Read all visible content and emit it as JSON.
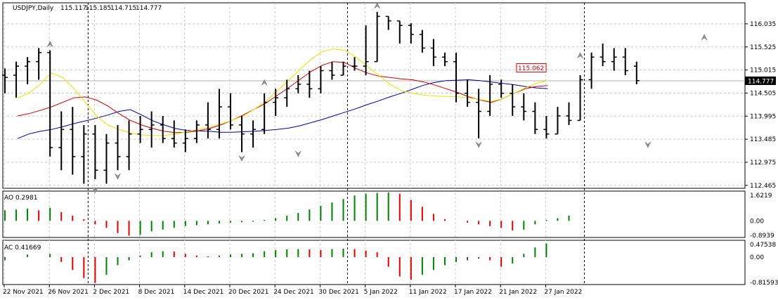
{
  "chart_data": {
    "type": "ohlc",
    "symbol": "USDJPY,Daily",
    "header_values": [
      "115.117",
      "115.185",
      "114.715",
      "114.777"
    ],
    "current_price": 114.777,
    "current_price_label": "114.777",
    "marker_price": 115.062,
    "marker_price_label": "115.062",
    "price_axis_ticks": [
      "116.035",
      "115.525",
      "115.015",
      "114.505",
      "113.995",
      "113.485",
      "112.975",
      "112.465"
    ],
    "ylim": [
      112.4,
      116.5
    ],
    "date_labels": [
      "22 Nov 2021",
      "26 Nov 2021",
      "2 Dec 2021",
      "8 Dec 2021",
      "14 Dec 2021",
      "20 Dec 2021",
      "24 Dec 2021",
      "30 Dec 2021",
      "5 Jan 2022",
      "11 Jan 2022",
      "17 Jan 2022",
      "21 Jan 2022",
      "27 Jan 2022"
    ],
    "date_label_bar_index": [
      0,
      4,
      8,
      12,
      16,
      20,
      24,
      28,
      32,
      36,
      40,
      44,
      48
    ],
    "separator_bar_index": [
      7,
      30,
      51
    ],
    "bars": [
      {
        "o": 114.9,
        "h": 115.05,
        "l": 114.5,
        "c": 114.85
      },
      {
        "o": 114.9,
        "h": 115.2,
        "l": 114.4,
        "c": 115.1
      },
      {
        "o": 115.1,
        "h": 115.3,
        "l": 114.7,
        "c": 115.2
      },
      {
        "o": 115.2,
        "h": 115.5,
        "l": 114.8,
        "c": 115.4
      },
      {
        "o": 115.4,
        "h": 115.45,
        "l": 113.1,
        "c": 113.3
      },
      {
        "o": 113.3,
        "h": 114.1,
        "l": 112.8,
        "c": 113.7
      },
      {
        "o": 113.7,
        "h": 114.2,
        "l": 112.7,
        "c": 113.1
      },
      {
        "o": 113.1,
        "h": 113.8,
        "l": 112.5,
        "c": 113.6
      },
      {
        "o": 113.6,
        "h": 113.8,
        "l": 112.6,
        "c": 112.8
      },
      {
        "o": 112.8,
        "h": 113.6,
        "l": 112.5,
        "c": 113.4
      },
      {
        "o": 113.4,
        "h": 113.8,
        "l": 112.8,
        "c": 113.1
      },
      {
        "o": 113.1,
        "h": 113.9,
        "l": 112.8,
        "c": 113.6
      },
      {
        "o": 113.6,
        "h": 114.0,
        "l": 113.4,
        "c": 113.7
      },
      {
        "o": 113.7,
        "h": 114.1,
        "l": 113.3,
        "c": 113.8
      },
      {
        "o": 113.8,
        "h": 114.0,
        "l": 113.4,
        "c": 113.5
      },
      {
        "o": 113.5,
        "h": 113.9,
        "l": 113.3,
        "c": 113.4
      },
      {
        "o": 113.4,
        "h": 113.7,
        "l": 113.2,
        "c": 113.5
      },
      {
        "o": 113.5,
        "h": 113.9,
        "l": 113.4,
        "c": 113.8
      },
      {
        "o": 113.8,
        "h": 114.3,
        "l": 113.5,
        "c": 113.7
      },
      {
        "o": 113.7,
        "h": 114.6,
        "l": 113.5,
        "c": 114.2
      },
      {
        "o": 114.2,
        "h": 114.5,
        "l": 113.7,
        "c": 113.8
      },
      {
        "o": 113.8,
        "h": 114.0,
        "l": 113.2,
        "c": 113.6
      },
      {
        "o": 113.6,
        "h": 113.9,
        "l": 113.3,
        "c": 113.7
      },
      {
        "o": 113.7,
        "h": 114.5,
        "l": 113.6,
        "c": 114.3
      },
      {
        "o": 114.3,
        "h": 114.6,
        "l": 114.0,
        "c": 114.4
      },
      {
        "o": 114.4,
        "h": 114.8,
        "l": 114.2,
        "c": 114.6
      },
      {
        "o": 114.6,
        "h": 114.9,
        "l": 114.5,
        "c": 114.7
      },
      {
        "o": 114.7,
        "h": 115.0,
        "l": 114.4,
        "c": 114.6
      },
      {
        "o": 114.6,
        "h": 115.1,
        "l": 114.5,
        "c": 115.0
      },
      {
        "o": 115.0,
        "h": 115.2,
        "l": 114.8,
        "c": 114.9
      },
      {
        "o": 114.9,
        "h": 115.2,
        "l": 114.9,
        "c": 115.1
      },
      {
        "o": 115.1,
        "h": 115.3,
        "l": 115.0,
        "c": 115.1
      },
      {
        "o": 115.1,
        "h": 116.0,
        "l": 114.9,
        "c": 115.2
      },
      {
        "o": 115.2,
        "h": 116.3,
        "l": 115.2,
        "c": 116.2
      },
      {
        "o": 116.2,
        "h": 116.2,
        "l": 115.9,
        "c": 116.1
      },
      {
        "o": 116.1,
        "h": 116.1,
        "l": 115.6,
        "c": 116.0
      }
    ],
    "bars_cont": [
      {
        "o": 116.0,
        "h": 116.05,
        "l": 115.6,
        "c": 115.8
      },
      {
        "o": 115.8,
        "h": 115.9,
        "l": 115.4,
        "c": 115.5
      },
      {
        "o": 115.5,
        "h": 115.7,
        "l": 115.1,
        "c": 115.3
      },
      {
        "o": 115.3,
        "h": 115.4,
        "l": 115.1,
        "c": 115.2
      },
      {
        "o": 115.2,
        "h": 115.4,
        "l": 114.3,
        "c": 114.5
      },
      {
        "o": 114.5,
        "h": 114.8,
        "l": 114.2,
        "c": 114.3
      },
      {
        "o": 114.3,
        "h": 114.6,
        "l": 113.5,
        "c": 114.1
      },
      {
        "o": 114.1,
        "h": 114.9,
        "l": 114.0,
        "c": 114.7
      },
      {
        "o": 114.7,
        "h": 114.8,
        "l": 114.4,
        "c": 114.5
      },
      {
        "o": 114.5,
        "h": 114.7,
        "l": 114.0,
        "c": 114.2
      },
      {
        "o": 114.2,
        "h": 114.5,
        "l": 113.9,
        "c": 114.1
      },
      {
        "o": 114.1,
        "h": 114.3,
        "l": 113.6,
        "c": 113.7
      },
      {
        "o": 113.7,
        "h": 114.0,
        "l": 113.5,
        "c": 113.6
      },
      {
        "o": 113.6,
        "h": 114.2,
        "l": 113.6,
        "c": 114.0
      },
      {
        "o": 114.0,
        "h": 114.3,
        "l": 113.8,
        "c": 113.9
      },
      {
        "o": 113.9,
        "h": 114.9,
        "l": 113.9,
        "c": 114.8
      },
      {
        "o": 114.8,
        "h": 115.4,
        "l": 114.6,
        "c": 115.3
      },
      {
        "o": 115.3,
        "h": 115.6,
        "l": 115.1,
        "c": 115.2
      },
      {
        "o": 115.2,
        "h": 115.5,
        "l": 115.0,
        "c": 115.3
      },
      {
        "o": 115.3,
        "h": 115.5,
        "l": 114.9,
        "c": 115.0
      },
      {
        "o": 115.1,
        "h": 115.2,
        "l": 114.7,
        "c": 114.78
      }
    ],
    "fractals_up": [
      {
        "i": 4,
        "v": 115.45
      },
      {
        "i": 23,
        "v": 114.6
      },
      {
        "i": 33,
        "v": 116.3
      },
      {
        "i": 51,
        "v": 115.2
      },
      {
        "i": 62,
        "v": 115.6
      }
    ],
    "fractals_down": [
      {
        "i": 8,
        "v": 112.5
      },
      {
        "i": 10,
        "v": 112.8
      },
      {
        "i": 21,
        "v": 113.2
      },
      {
        "i": 26,
        "v": 113.3
      },
      {
        "i": 42,
        "v": 113.5
      },
      {
        "i": 57,
        "v": 113.5
      }
    ],
    "ma_series": [
      {
        "color": "#0000a0",
        "values": [
          113.5,
          113.6,
          113.66,
          113.7,
          113.76,
          113.83,
          113.89,
          113.95,
          114.02,
          114.1,
          114.14,
          114.02,
          113.89,
          113.8,
          113.72,
          113.68,
          113.67,
          113.66,
          113.64,
          113.64,
          113.65,
          113.66,
          113.68,
          113.7,
          113.73,
          113.78,
          113.85,
          113.92,
          114.0,
          114.08,
          114.16,
          114.25,
          114.33,
          114.42,
          114.5,
          114.59,
          114.68,
          114.74,
          114.78,
          114.79,
          114.8,
          114.78,
          114.75,
          114.72,
          114.69,
          114.65,
          114.62,
          114.6
        ]
      },
      {
        "color": "#cc0000",
        "values": [
          114.0,
          114.05,
          114.12,
          114.2,
          114.3,
          114.4,
          114.42,
          114.35,
          114.22,
          114.05,
          113.9,
          113.8,
          113.72,
          113.66,
          113.63,
          113.64,
          113.67,
          113.72,
          113.8,
          113.9,
          114.02,
          114.15,
          114.28,
          114.45,
          114.62,
          114.8,
          114.98,
          115.12,
          115.2,
          115.18,
          115.05,
          114.95,
          114.88,
          114.85,
          114.82,
          114.8,
          114.75,
          114.68,
          114.6,
          114.52,
          114.42,
          114.35,
          114.3,
          114.38,
          114.5,
          114.6,
          114.65,
          114.67
        ]
      },
      {
        "color": "#e6e600",
        "values": [
          114.4,
          114.5,
          114.7,
          114.95,
          114.85,
          114.6,
          114.3,
          114.0,
          113.8,
          113.7,
          113.62,
          113.58,
          113.57,
          113.57,
          113.6,
          113.65,
          113.7,
          113.75,
          113.82,
          113.9,
          114.0,
          114.15,
          114.32,
          114.55,
          114.78,
          115.02,
          115.25,
          115.42,
          115.48,
          115.45,
          115.3,
          115.1,
          114.9,
          114.7,
          114.56,
          114.5,
          114.46,
          114.44,
          114.43,
          114.42,
          114.4,
          114.36,
          114.32,
          114.38,
          114.5,
          114.62,
          114.72,
          114.78
        ]
      }
    ],
    "ma_start_index": [
      0,
      0,
      0
    ],
    "ao": {
      "label": "AO 0.2981",
      "ticks": [
        "1.6219",
        "0.00",
        "-0.8939"
      ],
      "ylim": [
        -0.95,
        1.7
      ],
      "values": [
        0.6,
        0.65,
        0.7,
        0.6,
        0.75,
        0.5,
        0.3,
        0.1,
        -0.2,
        -0.4,
        -0.7,
        -0.85,
        -0.8,
        -0.6,
        -0.5,
        -0.4,
        -0.3,
        -0.25,
        -0.2,
        -0.15,
        -0.1,
        -0.08,
        -0.05,
        0.05,
        0.15,
        0.3,
        0.45,
        0.65,
        0.85,
        1.05,
        1.25,
        1.45,
        1.55,
        1.6,
        1.62,
        1.55,
        1.2,
        0.8,
        0.4,
        0.1,
        0.0,
        -0.1,
        -0.2,
        -0.3,
        -0.4,
        -0.55,
        -0.5,
        -0.2,
        0.05,
        0.15,
        0.3
      ]
    },
    "ac": {
      "label": "AC 0.41669",
      "ticks": [
        "0.47538",
        "0.00",
        "-0.81593"
      ],
      "ylim": [
        -0.85,
        0.52
      ],
      "values": [
        -0.1,
        0.0,
        0.08,
        0.0,
        0.1,
        -0.15,
        -0.4,
        -0.65,
        -0.8,
        -0.55,
        -0.25,
        -0.1,
        0.05,
        0.15,
        0.18,
        0.17,
        0.1,
        0.05,
        0.02,
        0.05,
        0.08,
        0.1,
        0.12,
        0.18,
        0.22,
        0.24,
        0.25,
        0.24,
        0.22,
        0.25,
        0.26,
        0.25,
        0.2,
        0.15,
        -0.3,
        -0.6,
        -0.7,
        -0.55,
        -0.4,
        -0.25,
        -0.15,
        -0.1,
        -0.05,
        -0.1,
        -0.3,
        -0.2,
        0.1,
        0.3,
        0.42
      ]
    }
  }
}
